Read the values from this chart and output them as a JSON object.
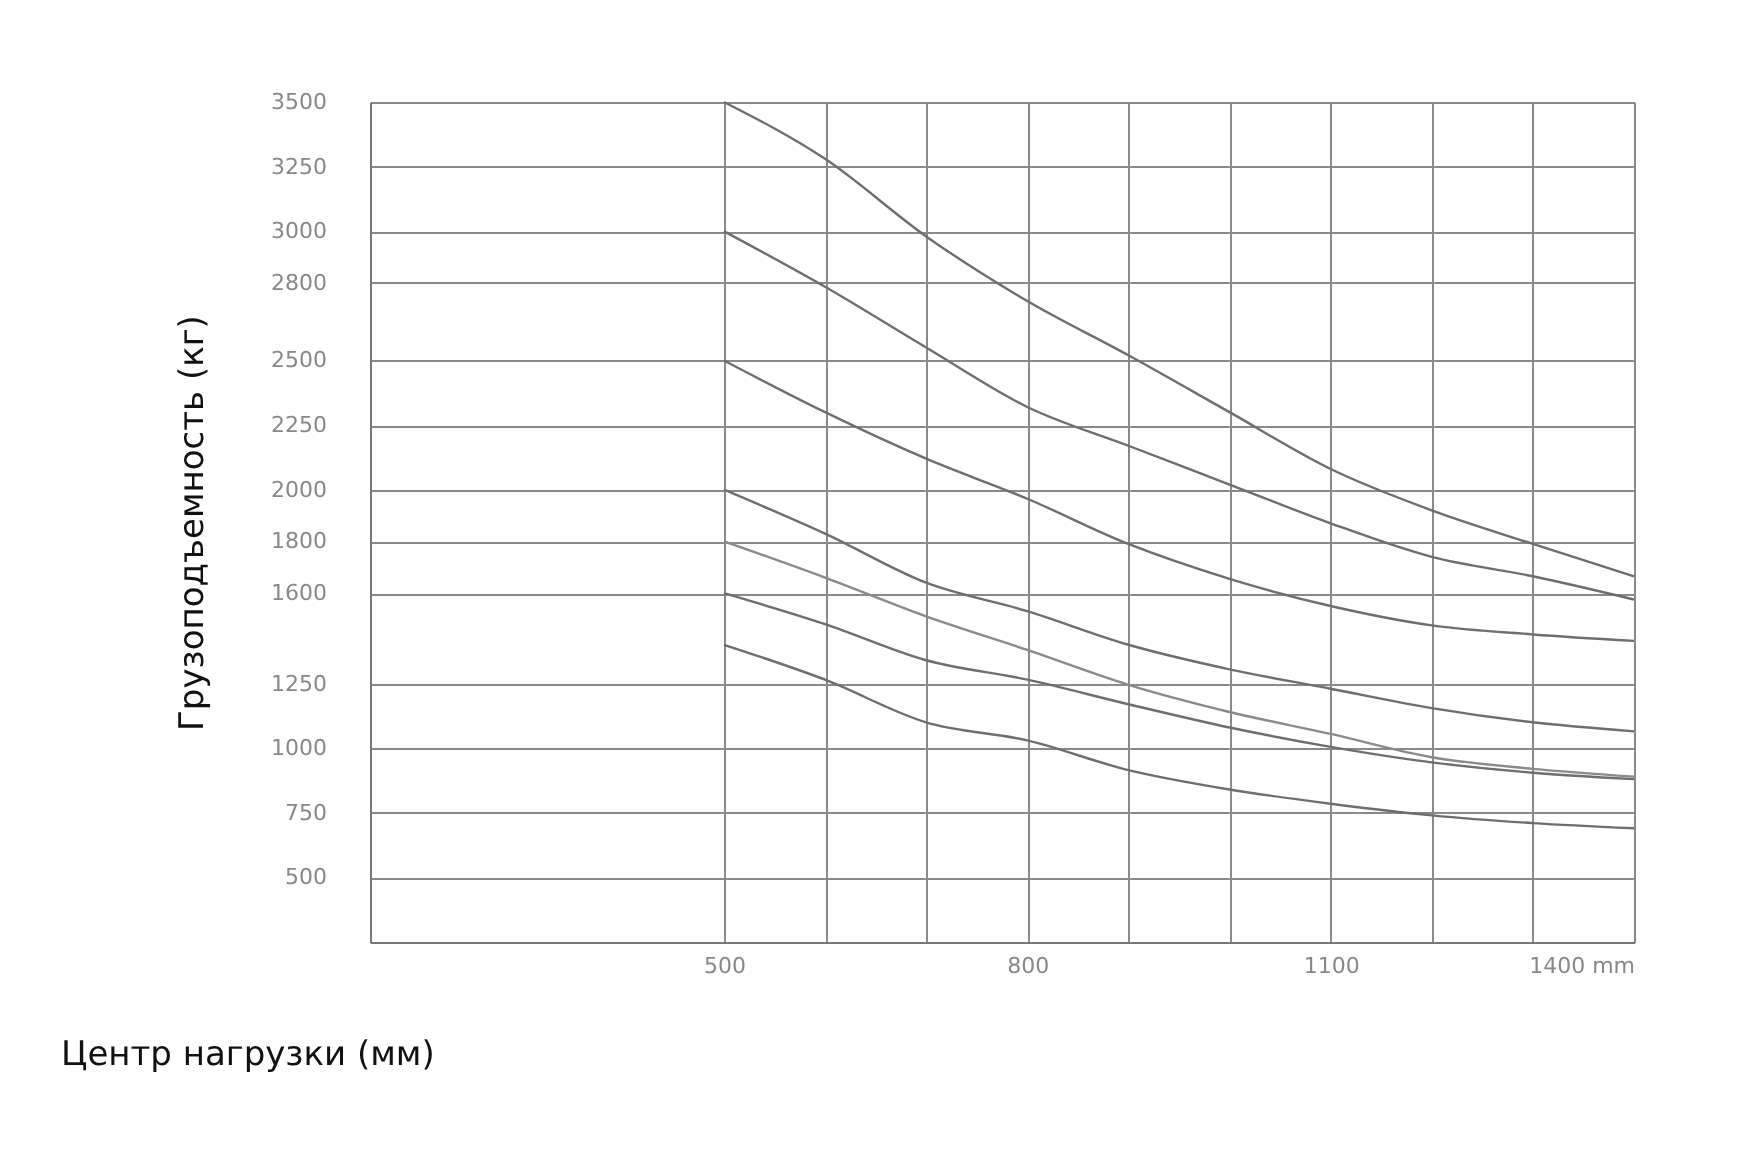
{
  "chart_data": {
    "type": "line",
    "xlabel": "Центр нагрузки (мм)",
    "ylabel": "Грузоподъемность (кг)",
    "x": [
      500,
      600,
      700,
      800,
      900,
      1000,
      1100,
      1200,
      1300,
      1400
    ],
    "series": [
      {
        "color": "#6e6e6e",
        "values": [
          3500,
          3280,
          2980,
          2730,
          2520,
          2300,
          2080,
          1920,
          1790,
          1665
        ]
      },
      {
        "color": "#6e6e6e",
        "values": [
          3000,
          2785,
          2550,
          2320,
          2170,
          2020,
          1870,
          1740,
          1665,
          1575
        ]
      },
      {
        "color": "#6e6e6e",
        "values": [
          2500,
          2300,
          2120,
          1965,
          1790,
          1655,
          1550,
          1475,
          1440,
          1415
        ]
      },
      {
        "color": "#6e6e6e",
        "values": [
          2000,
          1830,
          1640,
          1530,
          1400,
          1305,
          1230,
          1155,
          1100,
          1065
        ]
      },
      {
        "color": "#8a8a8a",
        "values": [
          1800,
          1660,
          1510,
          1380,
          1245,
          1140,
          1055,
          965,
          920,
          890
        ]
      },
      {
        "color": "#6e6e6e",
        "values": [
          1600,
          1480,
          1340,
          1265,
          1170,
          1080,
          1005,
          945,
          905,
          880
        ]
      },
      {
        "color": "#6e6e6e",
        "values": [
          1400,
          1265,
          1100,
          1030,
          915,
          840,
          785,
          740,
          710,
          690
        ]
      }
    ],
    "xlim": [
      150,
      1400
    ],
    "xticks": [
      500,
      {
        "value": 600,
        "label": null
      },
      {
        "value": 700,
        "label": null
      },
      800,
      {
        "value": 900,
        "label": null
      },
      {
        "value": 1000,
        "label": null
      },
      1100,
      {
        "value": 1200,
        "label": null
      },
      {
        "value": 1300,
        "label": null
      },
      {
        "value": 1400,
        "label": "1400 mm"
      }
    ],
    "ylim": [
      250,
      3500
    ],
    "yticks": [
      500,
      750,
      1000,
      1250,
      1600,
      1800,
      2000,
      2250,
      2500,
      2800,
      3000,
      3250,
      3500
    ],
    "grid": true,
    "legend": false,
    "marker": "none",
    "line_style": "solid"
  }
}
